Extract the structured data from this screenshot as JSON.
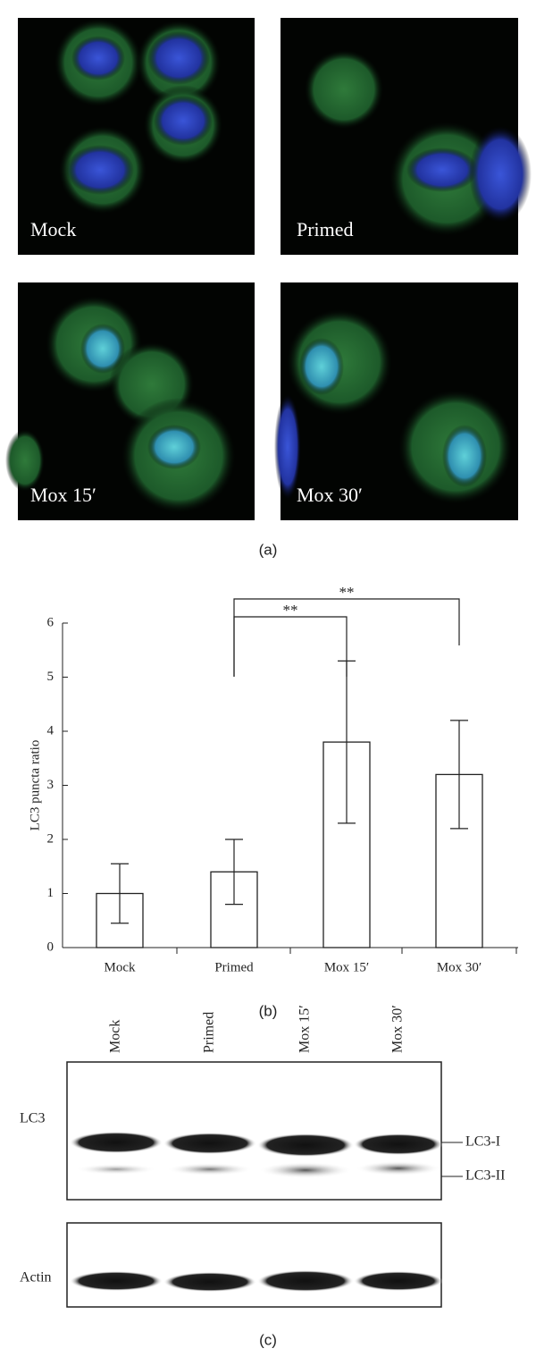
{
  "panel_a": {
    "labels": [
      "Mock",
      "Primed",
      "Mox 15′",
      "Mox 30′"
    ],
    "caption": "(a)"
  },
  "chart_data": {
    "type": "bar",
    "y_label": "LC3 puncta ratio",
    "categories": [
      "Mock",
      "Primed",
      "Mox 15′",
      "Mox 30′"
    ],
    "values": [
      1.0,
      1.4,
      3.8,
      3.2
    ],
    "errors": [
      0.55,
      0.6,
      1.5,
      1.0
    ],
    "color": "#ffffff",
    "ylim": [
      0,
      6
    ],
    "yticks": [
      0,
      1,
      2,
      3,
      4,
      5,
      6
    ],
    "annotations": [
      "**",
      "**"
    ],
    "caption": "(b)"
  },
  "panel_c": {
    "lanes": [
      "Mock",
      "Primed",
      "Mox 15′",
      "Mox 30′"
    ],
    "rows": [
      "LC3",
      "Actin"
    ],
    "bands": [
      "LC3-I",
      "LC3-II"
    ],
    "caption": "(c)"
  }
}
